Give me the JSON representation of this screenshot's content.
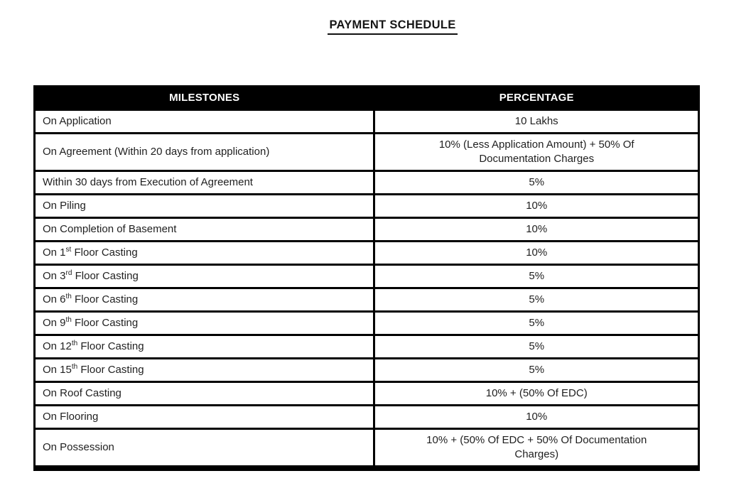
{
  "page": {
    "title": "PAYMENT SCHEDULE"
  },
  "colors": {
    "page_bg": "#ffffff",
    "header_bg": "#000000",
    "header_text": "#ffffff",
    "border": "#000000",
    "body_text": "#1f1f1f"
  },
  "table": {
    "headers": [
      "MILESTONES",
      "PERCENTAGE"
    ],
    "rows": [
      {
        "milestone": [
          {
            "t": "On Application"
          }
        ],
        "percentage_lines": [
          "10 Lakhs"
        ]
      },
      {
        "milestone": [
          {
            "t": "On Agreement (Within 20 days from application)"
          }
        ],
        "percentage_lines": [
          "10% (Less Application Amount) + 50% Of",
          "Documentation Charges"
        ]
      },
      {
        "milestone": [
          {
            "t": "Within 30 days from Execution of Agreement"
          }
        ],
        "percentage_lines": [
          "5%"
        ]
      },
      {
        "milestone": [
          {
            "t": "On Piling"
          }
        ],
        "percentage_lines": [
          "10%"
        ]
      },
      {
        "milestone": [
          {
            "t": "On Completion of Basement"
          }
        ],
        "percentage_lines": [
          "10%"
        ]
      },
      {
        "milestone": [
          {
            "t": "On 1"
          },
          {
            "sup": "st"
          },
          {
            "t": " Floor Casting"
          }
        ],
        "percentage_lines": [
          "10%"
        ]
      },
      {
        "milestone": [
          {
            "t": "On 3"
          },
          {
            "sup": "rd"
          },
          {
            "t": " Floor Casting"
          }
        ],
        "percentage_lines": [
          "5%"
        ]
      },
      {
        "milestone": [
          {
            "t": "On 6"
          },
          {
            "sup": "th"
          },
          {
            "t": " Floor Casting"
          }
        ],
        "percentage_lines": [
          "5%"
        ]
      },
      {
        "milestone": [
          {
            "t": "On 9"
          },
          {
            "sup": "th"
          },
          {
            "t": " Floor Casting"
          }
        ],
        "percentage_lines": [
          "5%"
        ]
      },
      {
        "milestone": [
          {
            "t": "On 12"
          },
          {
            "sup": "th"
          },
          {
            "t": " Floor Casting"
          }
        ],
        "percentage_lines": [
          "5%"
        ]
      },
      {
        "milestone": [
          {
            "t": "On 15"
          },
          {
            "sup": "th"
          },
          {
            "t": " Floor Casting"
          }
        ],
        "percentage_lines": [
          "5%"
        ]
      },
      {
        "milestone": [
          {
            "t": "On Roof Casting"
          }
        ],
        "percentage_lines": [
          "10% + (50% Of EDC)"
        ]
      },
      {
        "milestone": [
          {
            "t": "On Flooring"
          }
        ],
        "percentage_lines": [
          "10%"
        ]
      },
      {
        "milestone": [
          {
            "t": "On Possession"
          }
        ],
        "percentage_lines": [
          "10% + (50% Of EDC + 50% Of Documentation",
          "Charges)"
        ]
      }
    ]
  }
}
